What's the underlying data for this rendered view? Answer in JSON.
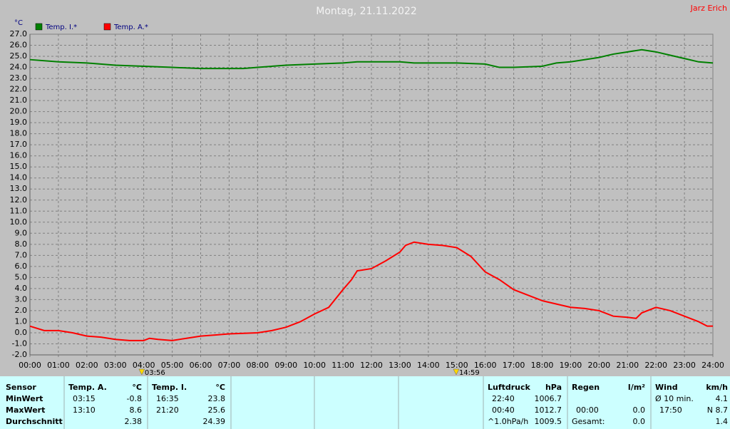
{
  "chart_data": {
    "type": "line",
    "title": "Montag, 21.11.2022",
    "author": "Jarz Erich",
    "y_label": "°C",
    "grid": true,
    "legend": "top-left",
    "xlim": [
      0,
      24
    ],
    "xticks": [
      {
        "value": 0,
        "label": "00:00"
      },
      {
        "value": 1,
        "label": "01:00"
      },
      {
        "value": 2,
        "label": "02:00"
      },
      {
        "value": 3,
        "label": "03:00"
      },
      {
        "value": 4,
        "label": "04:00"
      },
      {
        "value": 5,
        "label": "05:00"
      },
      {
        "value": 6,
        "label": "06:00"
      },
      {
        "value": 7,
        "label": "07:00"
      },
      {
        "value": 8,
        "label": "08:00"
      },
      {
        "value": 9,
        "label": "09:00"
      },
      {
        "value": 10,
        "label": "10:00"
      },
      {
        "value": 11,
        "label": "11:00"
      },
      {
        "value": 12,
        "label": "12:00"
      },
      {
        "value": 13,
        "label": "13:00"
      },
      {
        "value": 14,
        "label": "14:00"
      },
      {
        "value": 15,
        "label": "15:00"
      },
      {
        "value": 16,
        "label": "16:00"
      },
      {
        "value": 17,
        "label": "17:00"
      },
      {
        "value": 18,
        "label": "18:00"
      },
      {
        "value": 19,
        "label": "19:00"
      },
      {
        "value": 20,
        "label": "20:00"
      },
      {
        "value": 21,
        "label": "21:00"
      },
      {
        "value": 22,
        "label": "22:00"
      },
      {
        "value": 23,
        "label": "23:00"
      },
      {
        "value": 24,
        "label": "24:00"
      }
    ],
    "ylim": [
      -2,
      27
    ],
    "yticks": [
      {
        "value": -2,
        "label": "-2.0"
      },
      {
        "value": -1,
        "label": "-1.0"
      },
      {
        "value": 0,
        "label": "0.0"
      },
      {
        "value": 1,
        "label": "1.0"
      },
      {
        "value": 2,
        "label": "2.0"
      },
      {
        "value": 3,
        "label": "3.0"
      },
      {
        "value": 4,
        "label": "4.0"
      },
      {
        "value": 5,
        "label": "5.0"
      },
      {
        "value": 6,
        "label": "6.0"
      },
      {
        "value": 7,
        "label": "7.0"
      },
      {
        "value": 8,
        "label": "8.0"
      },
      {
        "value": 9,
        "label": "9.0"
      },
      {
        "value": 10,
        "label": "10.0"
      },
      {
        "value": 11,
        "label": "11.0"
      },
      {
        "value": 12,
        "label": "12.0"
      },
      {
        "value": 13,
        "label": "13.0"
      },
      {
        "value": 14,
        "label": "14.0"
      },
      {
        "value": 15,
        "label": "15.0"
      },
      {
        "value": 16,
        "label": "16.0"
      },
      {
        "value": 17,
        "label": "17.0"
      },
      {
        "value": 18,
        "label": "18.0"
      },
      {
        "value": 19,
        "label": "19.0"
      },
      {
        "value": 20,
        "label": "20.0"
      },
      {
        "value": 21,
        "label": "21.0"
      },
      {
        "value": 22,
        "label": "22.0"
      },
      {
        "value": 23,
        "label": "23.0"
      },
      {
        "value": 24,
        "label": "24.0"
      },
      {
        "value": 25,
        "label": "25.0"
      },
      {
        "value": 26,
        "label": "26.0"
      },
      {
        "value": 27,
        "label": "27.0"
      }
    ],
    "series": [
      {
        "name": "Temp. I.*",
        "color": "#008000",
        "x": [
          0,
          1,
          2,
          3,
          4,
          5,
          6,
          7,
          7.5,
          8,
          9,
          10,
          11,
          11.5,
          12,
          13,
          13.5,
          14,
          15,
          16,
          16.5,
          17,
          18,
          18.5,
          19,
          20,
          20.5,
          21,
          21.5,
          22,
          22.5,
          23,
          23.5,
          24
        ],
        "values": [
          24.7,
          24.5,
          24.4,
          24.2,
          24.1,
          24.0,
          23.9,
          23.9,
          23.9,
          24.0,
          24.2,
          24.3,
          24.4,
          24.5,
          24.5,
          24.5,
          24.4,
          24.4,
          24.4,
          24.3,
          24.0,
          24.0,
          24.1,
          24.4,
          24.5,
          24.9,
          25.2,
          25.4,
          25.6,
          25.4,
          25.1,
          24.8,
          24.5,
          24.4
        ]
      },
      {
        "name": "Temp. A.*",
        "color": "#ff0000",
        "x": [
          0,
          0.5,
          1,
          1.5,
          2,
          2.5,
          3,
          3.5,
          4,
          4.2,
          4.5,
          5,
          5.5,
          6,
          6.5,
          7,
          8,
          8.5,
          9,
          9.5,
          10,
          10.5,
          11,
          11.3,
          11.5,
          12,
          12.5,
          13,
          13.2,
          13.5,
          14,
          14.5,
          15,
          15.5,
          16,
          16.5,
          17,
          17.5,
          18,
          18.5,
          19,
          19.5,
          20,
          20.5,
          21,
          21.3,
          21.5,
          22,
          22.5,
          23,
          23.5,
          23.8,
          24
        ],
        "values": [
          0.6,
          0.2,
          0.2,
          0.0,
          -0.3,
          -0.4,
          -0.6,
          -0.7,
          -0.7,
          -0.5,
          -0.6,
          -0.7,
          -0.5,
          -0.3,
          -0.2,
          -0.1,
          0.0,
          0.2,
          0.5,
          1.0,
          1.7,
          2.3,
          3.9,
          4.8,
          5.6,
          5.8,
          6.5,
          7.3,
          7.9,
          8.2,
          8.0,
          7.9,
          7.7,
          6.9,
          5.5,
          4.8,
          3.9,
          3.4,
          2.9,
          2.6,
          2.3,
          2.2,
          2.0,
          1.5,
          1.4,
          1.3,
          1.8,
          2.3,
          2.0,
          1.5,
          1.0,
          0.6,
          0.6
        ]
      }
    ],
    "annotations": [
      {
        "x": 3.93,
        "label": "03:56"
      },
      {
        "x": 14.98,
        "label": "14:59"
      }
    ]
  },
  "table": {
    "sensor": {
      "title": "Sensor",
      "rows": [
        "MinWert",
        "MaxWert",
        "Durchschnitt"
      ]
    },
    "groups": [
      {
        "title": "Temp. A.",
        "unit": "°C",
        "rows": [
          {
            "time": "03:15",
            "value": "-0.8"
          },
          {
            "time": "13:10",
            "value": "8.6"
          },
          {
            "value": "2.38"
          }
        ]
      },
      {
        "title": "Temp. I.",
        "unit": "°C",
        "rows": [
          {
            "time": "16:35",
            "value": "23.8"
          },
          {
            "time": "21:20",
            "value": "25.6"
          },
          {
            "value": "24.39"
          }
        ]
      },
      {
        "title": "Luftdruck",
        "unit": "hPa",
        "rows": [
          {
            "time": "22:40",
            "value": "1006.7"
          },
          {
            "time": "00:40",
            "value": "1012.7"
          },
          {
            "time": "^1.0hPa/h",
            "value": "1009.5"
          }
        ]
      },
      {
        "title": "Regen",
        "unit": "l/m²",
        "rows": [
          {},
          {
            "time": "00:00",
            "value": "0.0"
          },
          {
            "time": "Gesamt:",
            "value": "0.0"
          }
        ]
      },
      {
        "title": "Wind",
        "unit": "km/h",
        "rows": [
          {
            "time": "Ø 10 min.",
            "value": "4.1"
          },
          {
            "time": "17:50",
            "value": "N 8.7"
          },
          {
            "value": "1.4"
          }
        ]
      }
    ]
  }
}
